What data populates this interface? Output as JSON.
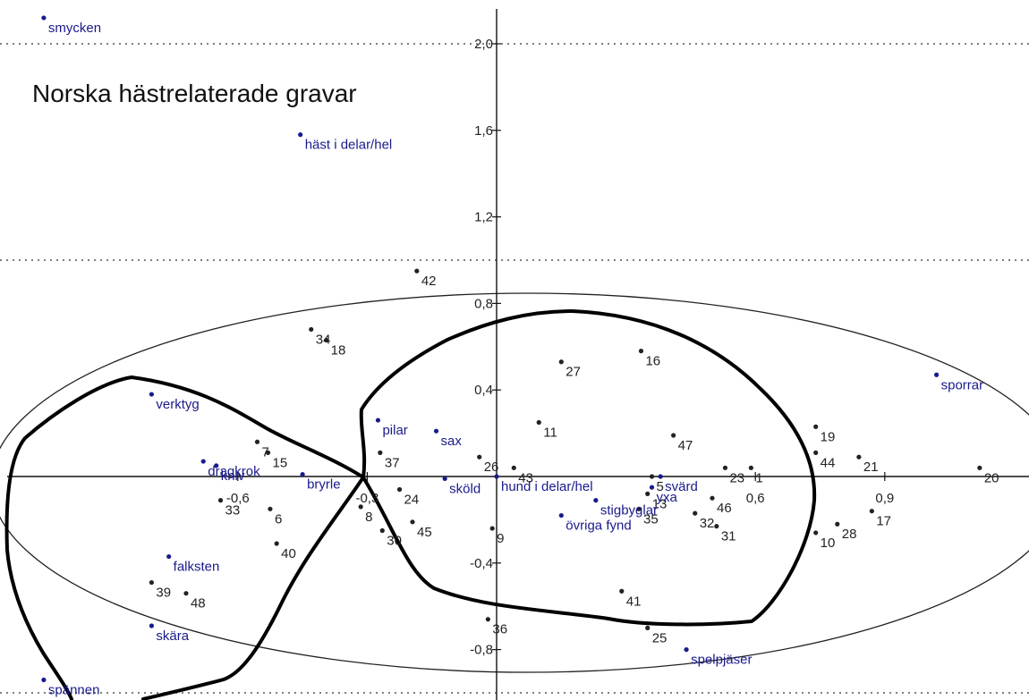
{
  "chart_data": {
    "type": "scatter",
    "title": "Norska hästrelaterade gravar",
    "x_tick_labels": [
      "-0,6",
      "-0,3",
      "0,6",
      "0,9"
    ],
    "y_tick_labels": [
      "2,0",
      "1,6",
      "1,2",
      "0,8",
      "0,4",
      "-0,4",
      "-0,8"
    ],
    "x_ticks": [
      -0.6,
      -0.3,
      0.6,
      0.9
    ],
    "y_ticks": [
      2.0,
      1.6,
      1.2,
      0.8,
      0.4,
      -0.4,
      -0.8
    ],
    "xlim": [
      -1.1,
      1.2
    ],
    "ylim": [
      -1.0,
      2.2
    ],
    "reference_lines_y": [
      2.0,
      1.0,
      -1.0
    ],
    "colors": {
      "graves": "#222222",
      "finds": "#1a1a8c",
      "outline": "#000000"
    },
    "series": [
      {
        "kind": "graves",
        "points": [
          {
            "label": "1",
            "x": 0.59,
            "y": 0.04
          },
          {
            "label": "10",
            "x": 0.74,
            "y": -0.26
          },
          {
            "label": "11",
            "x": 0.098,
            "y": 0.25
          },
          {
            "label": "15",
            "x": -0.53,
            "y": 0.11
          },
          {
            "label": "16",
            "x": 0.335,
            "y": 0.58
          },
          {
            "label": "17",
            "x": 0.87,
            "y": -0.16
          },
          {
            "label": "18",
            "x": -0.395,
            "y": 0.63
          },
          {
            "label": "19",
            "x": 0.74,
            "y": 0.23
          },
          {
            "label": "20",
            "x": 1.12,
            "y": 0.04
          },
          {
            "label": "21",
            "x": 0.84,
            "y": 0.09
          },
          {
            "label": "23",
            "x": 0.53,
            "y": 0.04
          },
          {
            "label": "24",
            "x": -0.225,
            "y": -0.06
          },
          {
            "label": "25",
            "x": 0.35,
            "y": -0.7
          },
          {
            "label": "26",
            "x": -0.04,
            "y": 0.09
          },
          {
            "label": "27",
            "x": 0.15,
            "y": 0.53
          },
          {
            "label": "28",
            "x": 0.79,
            "y": -0.22
          },
          {
            "label": "30",
            "x": -0.265,
            "y": -0.25
          },
          {
            "label": "31",
            "x": 0.51,
            "y": -0.23
          },
          {
            "label": "32",
            "x": 0.46,
            "y": -0.17
          },
          {
            "label": "33",
            "x": -0.64,
            "y": -0.11
          },
          {
            "label": "34",
            "x": -0.43,
            "y": 0.68
          },
          {
            "label": "35",
            "x": 0.33,
            "y": -0.15
          },
          {
            "label": "36",
            "x": -0.02,
            "y": -0.66
          },
          {
            "label": "37",
            "x": -0.27,
            "y": 0.11
          },
          {
            "label": "39",
            "x": -0.8,
            "y": -0.49
          },
          {
            "label": "40",
            "x": -0.51,
            "y": -0.31
          },
          {
            "label": "41",
            "x": 0.29,
            "y": -0.53
          },
          {
            "label": "42",
            "x": -0.185,
            "y": 0.95
          },
          {
            "label": "43",
            "x": 0.04,
            "y": 0.04
          },
          {
            "label": "44",
            "x": 0.74,
            "y": 0.11
          },
          {
            "label": "45",
            "x": -0.195,
            "y": -0.21
          },
          {
            "label": "46",
            "x": 0.5,
            "y": -0.1
          },
          {
            "label": "47",
            "x": 0.41,
            "y": 0.19
          },
          {
            "label": "48",
            "x": -0.72,
            "y": -0.54
          },
          {
            "label": "5",
            "x": 0.36,
            "y": 0.0
          },
          {
            "label": "6",
            "x": -0.525,
            "y": -0.15
          },
          {
            "label": "7",
            "x": -0.555,
            "y": 0.16
          },
          {
            "label": "8",
            "x": -0.315,
            "y": -0.14
          },
          {
            "label": "9",
            "x": -0.01,
            "y": -0.24
          },
          {
            "label": "13",
            "x": 0.35,
            "y": -0.08
          }
        ]
      },
      {
        "kind": "finds",
        "points": [
          {
            "label": "smycken",
            "x": -1.05,
            "y": 2.12
          },
          {
            "label": "häst i delar/hel",
            "x": -0.455,
            "y": 1.58
          },
          {
            "label": "verktyg",
            "x": -0.8,
            "y": 0.38
          },
          {
            "label": "pilar",
            "x": -0.275,
            "y": 0.26
          },
          {
            "label": "sax",
            "x": -0.14,
            "y": 0.21
          },
          {
            "label": "dragkrok",
            "x": -0.68,
            "y": 0.07
          },
          {
            "label": "kniv",
            "x": -0.65,
            "y": 0.05
          },
          {
            "label": "bryrle",
            "x": -0.45,
            "y": 0.01
          },
          {
            "label": "sköld",
            "x": -0.12,
            "y": -0.01
          },
          {
            "label": "hund i delar/hel",
            "x": 0.0,
            "y": 0.0
          },
          {
            "label": "stigbyglar",
            "x": 0.23,
            "y": -0.11
          },
          {
            "label": "svärd",
            "x": 0.38,
            "y": 0.0
          },
          {
            "label": "yxa",
            "x": 0.36,
            "y": -0.05
          },
          {
            "label": "övriga fynd",
            "x": 0.15,
            "y": -0.18
          },
          {
            "label": "sporrar",
            "x": 1.02,
            "y": 0.47
          },
          {
            "label": "falksten",
            "x": -0.76,
            "y": -0.37
          },
          {
            "label": "skära",
            "x": -0.8,
            "y": -0.69
          },
          {
            "label": "spännen",
            "x": -1.05,
            "y": -0.94
          },
          {
            "label": "spelpjäser",
            "x": 0.44,
            "y": -0.8
          }
        ]
      }
    ]
  }
}
